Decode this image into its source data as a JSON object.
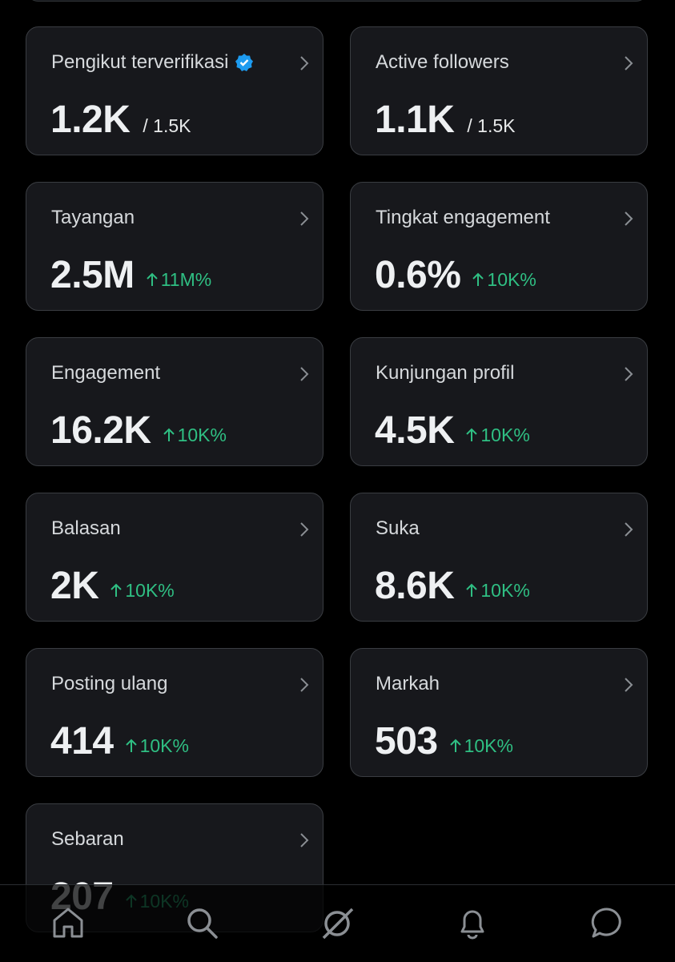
{
  "cards": [
    {
      "label": "Pengikut terverifikasi",
      "value": "1.2K",
      "total": "/ 1.5K",
      "verified": true
    },
    {
      "label": "Active followers",
      "value": "1.1K",
      "total": "/ 1.5K"
    },
    {
      "label": "Tayangan",
      "value": "2.5M",
      "change": "11M%"
    },
    {
      "label": "Tingkat engagement",
      "value": "0.6%",
      "change": "10K%"
    },
    {
      "label": "Engagement",
      "value": "16.2K",
      "change": "10K%"
    },
    {
      "label": "Kunjungan profil",
      "value": "4.5K",
      "change": "10K%"
    },
    {
      "label": "Balasan",
      "value": "2K",
      "change": "10K%"
    },
    {
      "label": "Suka",
      "value": "8.6K",
      "change": "10K%"
    },
    {
      "label": "Posting ulang",
      "value": "414",
      "change": "10K%"
    },
    {
      "label": "Markah",
      "value": "503",
      "change": "10K%"
    },
    {
      "label": "Sebaran",
      "value": "207",
      "change": "10K%"
    }
  ]
}
